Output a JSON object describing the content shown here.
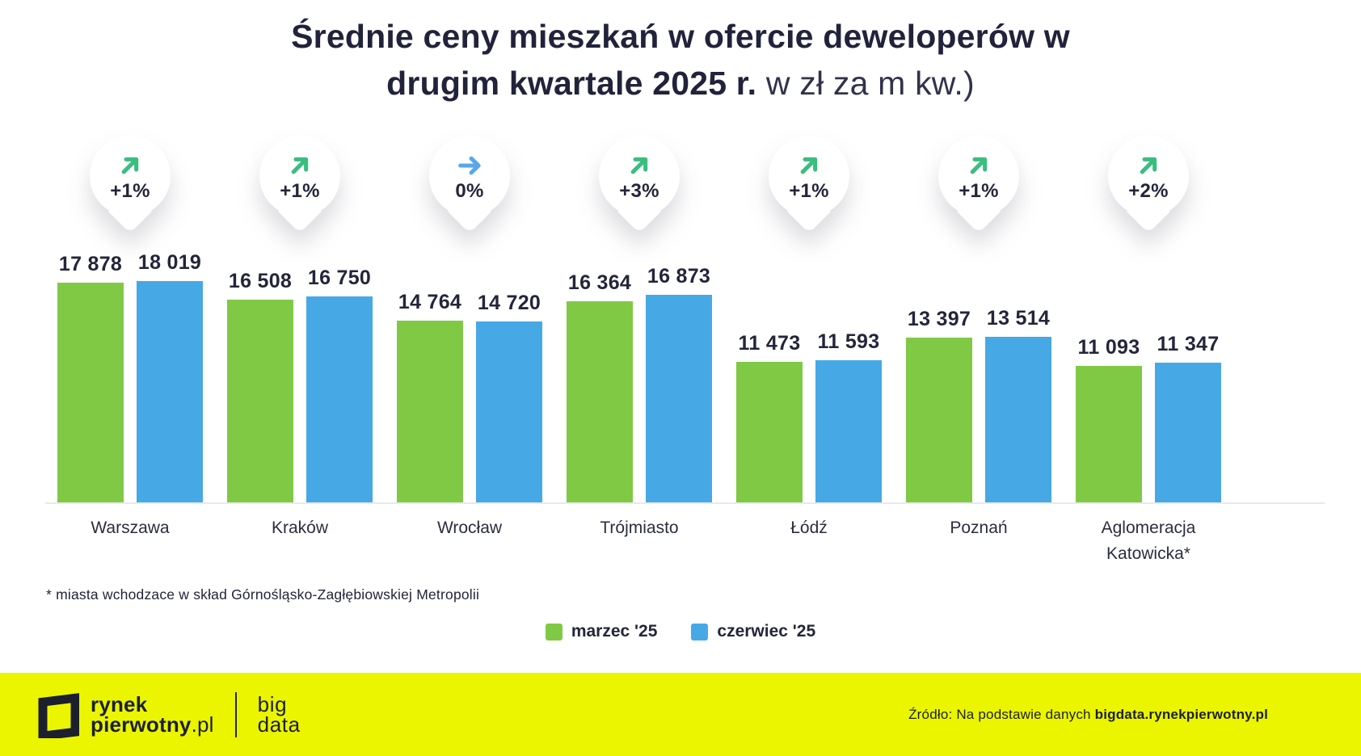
{
  "title": {
    "line1_bold": "Średnie ceny mieszkań w ofercie deweloperów w",
    "line2_bold": "drugim kwartale 2025 r.",
    "line2_light": " w zł za m kw.)"
  },
  "chart_data": {
    "type": "bar",
    "title": "Średnie ceny mieszkań w ofercie deweloperów w drugim kwartale 2025 r. w zł za m kw.)",
    "categories": [
      "Warszawa",
      "Kraków",
      "Wrocław",
      "Trójmiasto",
      "Łódź",
      "Poznań",
      "Aglomeracja Katowicka*"
    ],
    "series": [
      {
        "name": "marzec '25",
        "color": "#80c945",
        "values": [
          17878,
          16508,
          14764,
          16364,
          11473,
          13397,
          11093
        ]
      },
      {
        "name": "czerwiec '25",
        "color": "#47a8e6",
        "values": [
          18019,
          16750,
          14720,
          16873,
          11593,
          13514,
          11347
        ]
      }
    ],
    "changes": [
      {
        "label": "+1%",
        "direction": "up",
        "icon": "trend-up-icon"
      },
      {
        "label": "+1%",
        "direction": "up",
        "icon": "trend-up-icon"
      },
      {
        "label": "0%",
        "direction": "flat",
        "icon": "trend-right-icon"
      },
      {
        "label": "+3%",
        "direction": "up",
        "icon": "trend-up-icon"
      },
      {
        "label": "+1%",
        "direction": "up",
        "icon": "trend-up-icon"
      },
      {
        "label": "+1%",
        "direction": "up",
        "icon": "trend-up-icon"
      },
      {
        "label": "+2%",
        "direction": "up",
        "icon": "trend-up-icon"
      }
    ],
    "ylim": [
      0,
      18019
    ],
    "xlabel": "",
    "ylabel": "zł za m kw.",
    "grid": false,
    "legend_position": "bottom",
    "value_label_format": "space-thousands"
  },
  "colors": {
    "bar_green": "#80c945",
    "bar_blue": "#47a8e6",
    "arrow_up_green": "#3bbd80",
    "arrow_flat_blue": "#58a8e8",
    "text_dark": "#23263a",
    "axis_line": "#e9e9ed",
    "footer_yellow": "#ebf500"
  },
  "footnote": "* miasta wchodzace w skład Górnośląsko-Zagłębiowskiej Metropolii",
  "legend": [
    {
      "label": "marzec '25",
      "color": "#80c945"
    },
    {
      "label": "czerwiec '25",
      "color": "#47a8e6"
    }
  ],
  "footer": {
    "logo_line1": "rynek",
    "logo_line2_bold": "pierwotny",
    "logo_line2_light": ".pl",
    "bigdata_line1": "big",
    "bigdata_line2": "data",
    "source_prefix": "Źródło: Na podstawie danych ",
    "source_bold": "bigdata.rynekpierwotny.pl"
  }
}
